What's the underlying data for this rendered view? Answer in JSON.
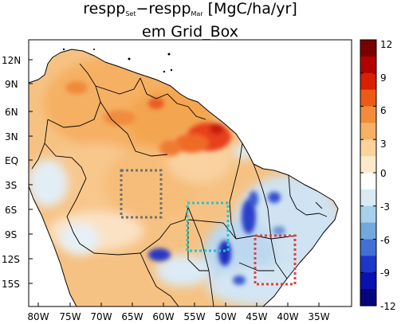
{
  "title": {
    "line1_a": "respp",
    "line1_sub_a": "Set",
    "line1_b": "−respp",
    "line1_sub_b": "Mar",
    "line1_c": " [MgC/ha/yr]",
    "line2": "em Grid_Box"
  },
  "lat_labels": [
    "12N",
    "9N",
    "6N",
    "3N",
    "EQ",
    "3S",
    "6S",
    "9S",
    "12S",
    "15S"
  ],
  "lon_labels": [
    "80W",
    "75W",
    "70W",
    "65W",
    "60W",
    "55W",
    "50W",
    "45W",
    "40W",
    "35W"
  ],
  "colorbar": {
    "ticks": [
      "12",
      "9",
      "6",
      "3",
      "0",
      "-3",
      "-6",
      "-9",
      "-12"
    ],
    "colors": [
      "#7a0000",
      "#b30000",
      "#d92000",
      "#ec5a18",
      "#f28c3a",
      "#f7b165",
      "#fbd39c",
      "#fdeacd",
      "#ffffff",
      "#d8eaf4",
      "#a9d0ea",
      "#72a8dc",
      "#4270d4",
      "#1c36c8",
      "#0b10b0",
      "#06067a"
    ]
  },
  "boxes": [
    {
      "name": "gray-box",
      "color": "#707070"
    },
    {
      "name": "cyan-box",
      "color": "#20c8c8"
    },
    {
      "name": "red-box",
      "color": "#e04040"
    }
  ]
}
